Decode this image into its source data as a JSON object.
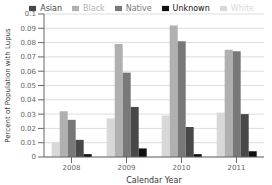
{
  "chart_data": {
    "type": "bar",
    "xlabel": "Calendar Year",
    "ylabel": "Percent of Population with Lupus",
    "categories": [
      "2008",
      "2009",
      "2010",
      "2011"
    ],
    "series": [
      {
        "name": "White",
        "color": "#d8d8d8",
        "values": [
          0.01,
          0.027,
          0.029,
          0.031
        ]
      },
      {
        "name": "Black",
        "color": "#b0b0b0",
        "values": [
          0.032,
          0.079,
          0.092,
          0.075
        ]
      },
      {
        "name": "Native",
        "color": "#787878",
        "values": [
          0.026,
          0.059,
          0.081,
          0.074
        ]
      },
      {
        "name": "Asian",
        "color": "#484848",
        "values": [
          0.012,
          0.035,
          0.021,
          0.03
        ]
      },
      {
        "name": "Unknown",
        "color": "#101010",
        "values": [
          0.002,
          0.006,
          0.002,
          0.004
        ]
      }
    ],
    "ylim": [
      0,
      0.1
    ],
    "yticks": [
      0,
      0.01,
      0.02,
      0.03,
      0.04,
      0.05,
      0.06,
      0.07,
      0.08,
      0.09,
      0.1
    ],
    "grid": true,
    "legend": "upper right"
  }
}
